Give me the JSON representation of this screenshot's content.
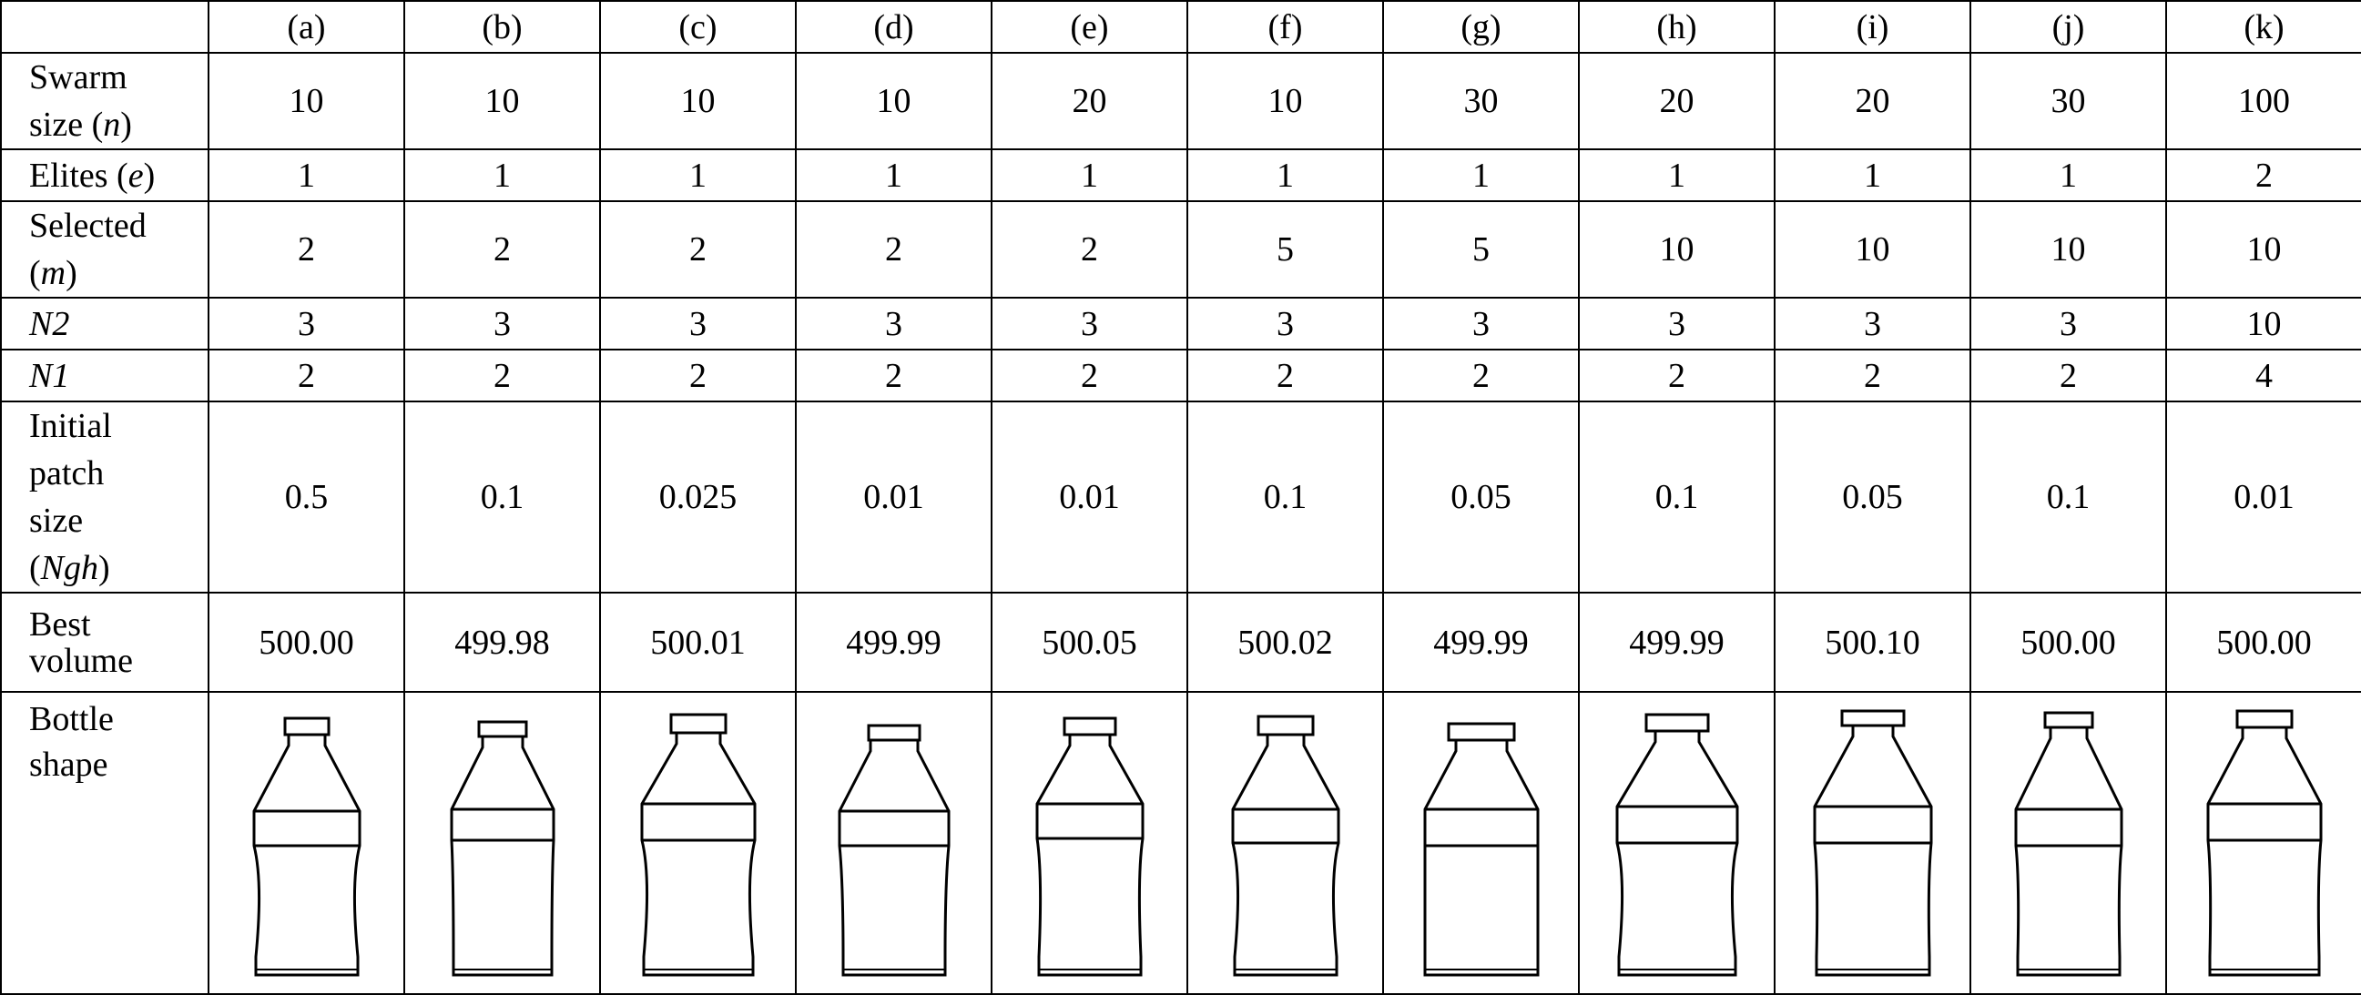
{
  "columns": [
    "(a)",
    "(b)",
    "(c)",
    "(d)",
    "(e)",
    "(f)",
    "(g)",
    "(h)",
    "(i)",
    "(j)",
    "(k)"
  ],
  "rows": {
    "swarm_size": {
      "label_line1": "Swarm",
      "label_line2_pre": "size (",
      "label_line2_var": "n",
      "label_line2_post": ")",
      "values": [
        "10",
        "10",
        "10",
        "10",
        "20",
        "10",
        "30",
        "20",
        "20",
        "30",
        "100"
      ]
    },
    "elites": {
      "label_pre": "Elites (",
      "label_var": "e",
      "label_post": ")",
      "values": [
        "1",
        "1",
        "1",
        "1",
        "1",
        "1",
        "1",
        "1",
        "1",
        "1",
        "2"
      ]
    },
    "selected": {
      "label_line1": "Selected",
      "label_line2_pre": "(",
      "label_line2_var": "m",
      "label_line2_post": ")",
      "values": [
        "2",
        "2",
        "2",
        "2",
        "2",
        "5",
        "5",
        "10",
        "10",
        "10",
        "10"
      ]
    },
    "n2": {
      "label": "N2",
      "values": [
        "3",
        "3",
        "3",
        "3",
        "3",
        "3",
        "3",
        "3",
        "3",
        "3",
        "10"
      ]
    },
    "n1": {
      "label": "N1",
      "values": [
        "2",
        "2",
        "2",
        "2",
        "2",
        "2",
        "2",
        "2",
        "2",
        "2",
        "4"
      ]
    },
    "patch_size": {
      "label_line1": "Initial",
      "label_line2": "patch",
      "label_line3": "size",
      "label_line4_pre": "(",
      "label_line4_var": "Ngh",
      "label_line4_post": ")",
      "values": [
        "0.5",
        "0.1",
        "0.025",
        "0.01",
        "0.01",
        "0.1",
        "0.05",
        "0.1",
        "0.05",
        "0.1",
        "0.01"
      ]
    },
    "best_volume": {
      "label_line1": "Best",
      "label_line2": "volume",
      "values": [
        "500.00",
        "499.98",
        "500.01",
        "499.99",
        "500.05",
        "500.02",
        "499.99",
        "499.99",
        "500.10",
        "500.00",
        "500.00"
      ]
    },
    "bottle_shape": {
      "label_line1": "Bottle",
      "label_line2": "shape"
    }
  },
  "bottle_icon": "bottle-outline-icon",
  "colors": {
    "line": "#000000",
    "background": "#ffffff"
  }
}
